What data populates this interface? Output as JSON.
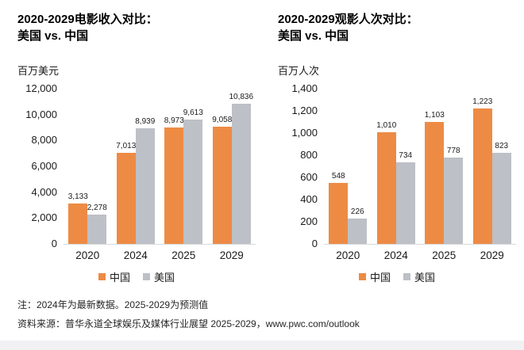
{
  "chart_data": [
    {
      "type": "bar",
      "title_line1": "2020-2029电影收入对比：",
      "title_line2": "美国 vs. 中国",
      "unit": "百万美元",
      "categories": [
        "2020",
        "2024",
        "2025",
        "2029"
      ],
      "series": [
        {
          "key": "china",
          "name": "中国",
          "color": "#ED8B45",
          "values": [
            3133,
            7013,
            8973,
            9058
          ],
          "labels": [
            "3,133",
            "7,013",
            "8,973",
            "9,058"
          ]
        },
        {
          "key": "us",
          "name": "美国",
          "color": "#BDC0C6",
          "values": [
            2278,
            8939,
            9613,
            10836
          ],
          "labels": [
            "2,278",
            "8,939",
            "9,613",
            "10,836"
          ]
        }
      ],
      "ylim": [
        0,
        12000
      ],
      "yticks": [
        "0",
        "2,000",
        "4,000",
        "6,000",
        "8,000",
        "10,000",
        "12,000"
      ],
      "grid": false,
      "legend_position": "bottom"
    },
    {
      "type": "bar",
      "title_line1": "2020-2029观影人次对比：",
      "title_line2": "美国 vs. 中国",
      "unit": "百万人次",
      "categories": [
        "2020",
        "2024",
        "2025",
        "2029"
      ],
      "series": [
        {
          "key": "china",
          "name": "中国",
          "color": "#ED8B45",
          "values": [
            548,
            1010,
            1103,
            1223
          ],
          "labels": [
            "548",
            "1,010",
            "1,103",
            "1,223"
          ]
        },
        {
          "key": "us",
          "name": "美国",
          "color": "#BDC0C6",
          "values": [
            226,
            734,
            778,
            823
          ],
          "labels": [
            "226",
            "734",
            "778",
            "823"
          ]
        }
      ],
      "ylim": [
        0,
        1400
      ],
      "yticks": [
        "0",
        "200",
        "400",
        "600",
        "800",
        "1,000",
        "1,200",
        "1,400"
      ],
      "grid": false,
      "legend_position": "bottom"
    }
  ],
  "notes": {
    "line1": "注：2024年为最新数据。2025-2029为预测值",
    "line2": "资料来源：普华永道全球娱乐及媒体行业展望 2025-2029，www.pwc.com/outlook"
  },
  "colors": {
    "china": "#ED8B45",
    "us": "#BDC0C6",
    "axis_line": "#D9D9D9",
    "footer_band": "#F1F1F3"
  }
}
